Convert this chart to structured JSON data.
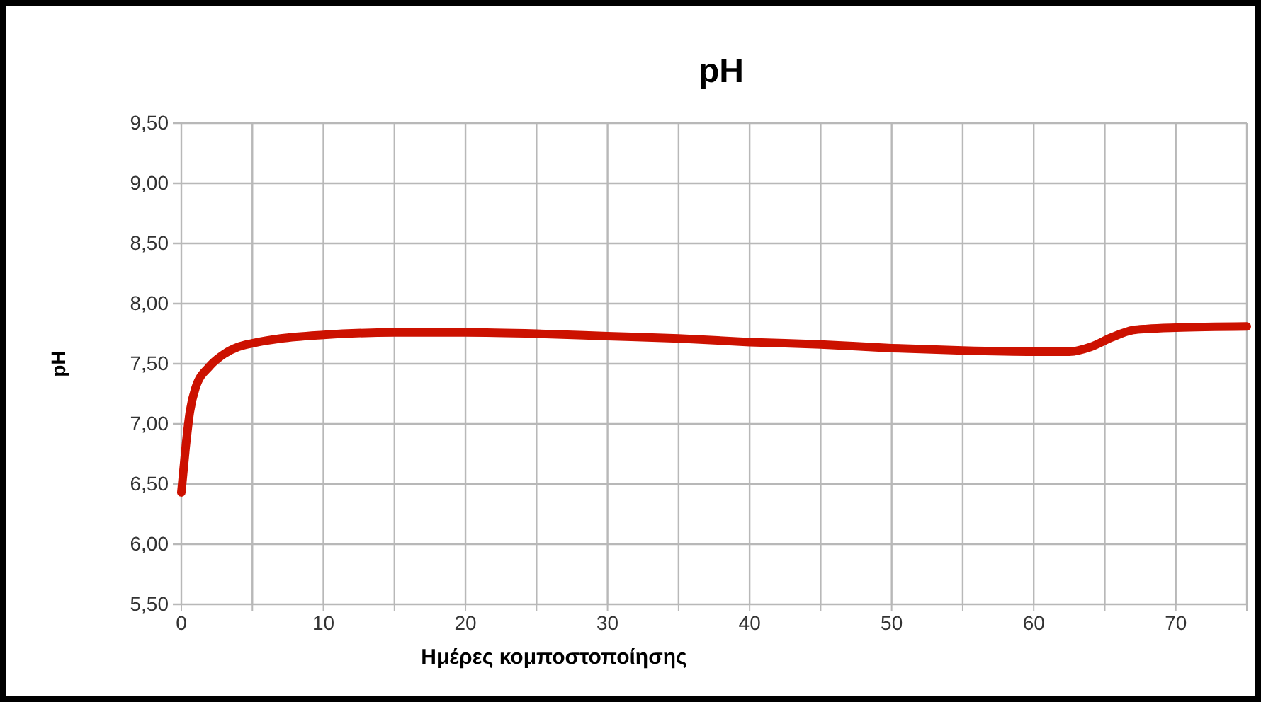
{
  "chart_data": {
    "type": "line",
    "title": "pH",
    "xlabel": "Ημέρες κομποστοποίησης",
    "ylabel": "pH",
    "x": [
      0,
      0.3,
      0.6,
      1,
      2,
      3,
      4,
      5,
      7,
      10,
      15,
      20,
      25,
      30,
      35,
      40,
      45,
      50,
      55,
      60,
      62.5,
      64,
      65.5,
      67,
      68,
      70,
      75
    ],
    "series": [
      {
        "color": "#cc1100",
        "values": [
          6.43,
          6.8,
          7.1,
          7.3,
          7.48,
          7.58,
          7.64,
          7.67,
          7.71,
          7.74,
          7.76,
          7.76,
          7.75,
          7.73,
          7.71,
          7.68,
          7.66,
          7.63,
          7.61,
          7.6,
          7.6,
          7.64,
          7.72,
          7.78,
          7.79,
          7.8,
          7.81
        ]
      }
    ],
    "xlim": [
      0,
      75
    ],
    "xticks": [
      0,
      {
        "value": 5,
        "label": null
      },
      10,
      {
        "value": 15,
        "label": null
      },
      20,
      {
        "value": 25,
        "label": null
      },
      30,
      {
        "value": 35,
        "label": null
      },
      40,
      {
        "value": 45,
        "label": null
      },
      50,
      {
        "value": 55,
        "label": null
      },
      60,
      {
        "value": 65,
        "label": null
      },
      70,
      {
        "value": 75,
        "label": null
      }
    ],
    "ylim": [
      5.5,
      9.5
    ],
    "yticks": [
      {
        "value": 5.5,
        "label": "5,50"
      },
      {
        "value": 6,
        "label": "6,00"
      },
      {
        "value": 6.5,
        "label": "6,50"
      },
      {
        "value": 7,
        "label": "7,00"
      },
      {
        "value": 7.5,
        "label": "7,50"
      },
      {
        "value": 8,
        "label": "8,00"
      },
      {
        "value": 8.5,
        "label": "8,50"
      },
      {
        "value": 9,
        "label": "9,00"
      },
      {
        "value": 9.5,
        "label": "9,50"
      }
    ],
    "grid": true,
    "marker": "none",
    "line_style": "solid"
  }
}
